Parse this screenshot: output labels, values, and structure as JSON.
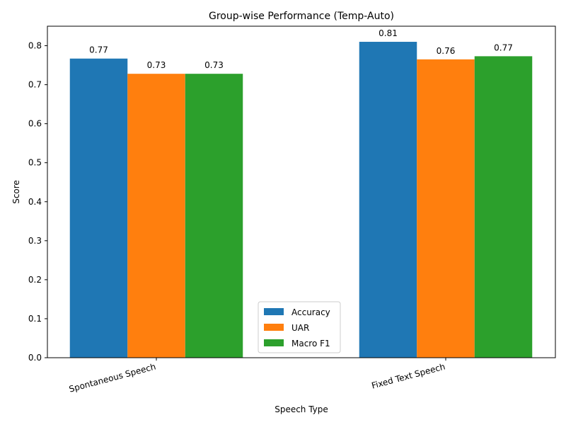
{
  "chart_data": {
    "type": "bar",
    "title": "Group-wise Performance (Temp-Auto)",
    "xlabel": "Speech Type",
    "ylabel": "Score",
    "categories": [
      "Spontaneous Speech",
      "Fixed Text Speech"
    ],
    "series": [
      {
        "name": "Accuracy",
        "color": "#1f77b4",
        "values": [
          0.767,
          0.81
        ],
        "labels": [
          "0.77",
          "0.81"
        ]
      },
      {
        "name": "UAR",
        "color": "#ff7f0e",
        "values": [
          0.728,
          0.765
        ],
        "labels": [
          "0.73",
          "0.76"
        ]
      },
      {
        "name": "Macro F1",
        "color": "#2ca02c",
        "values": [
          0.728,
          0.773
        ],
        "labels": [
          "0.73",
          "0.77"
        ]
      }
    ],
    "ylim": [
      0,
      0.85
    ],
    "yticks": [
      "0.0",
      "0.1",
      "0.2",
      "0.3",
      "0.4",
      "0.5",
      "0.6",
      "0.7",
      "0.8"
    ],
    "legend_position": "lower center",
    "grid": false
  }
}
